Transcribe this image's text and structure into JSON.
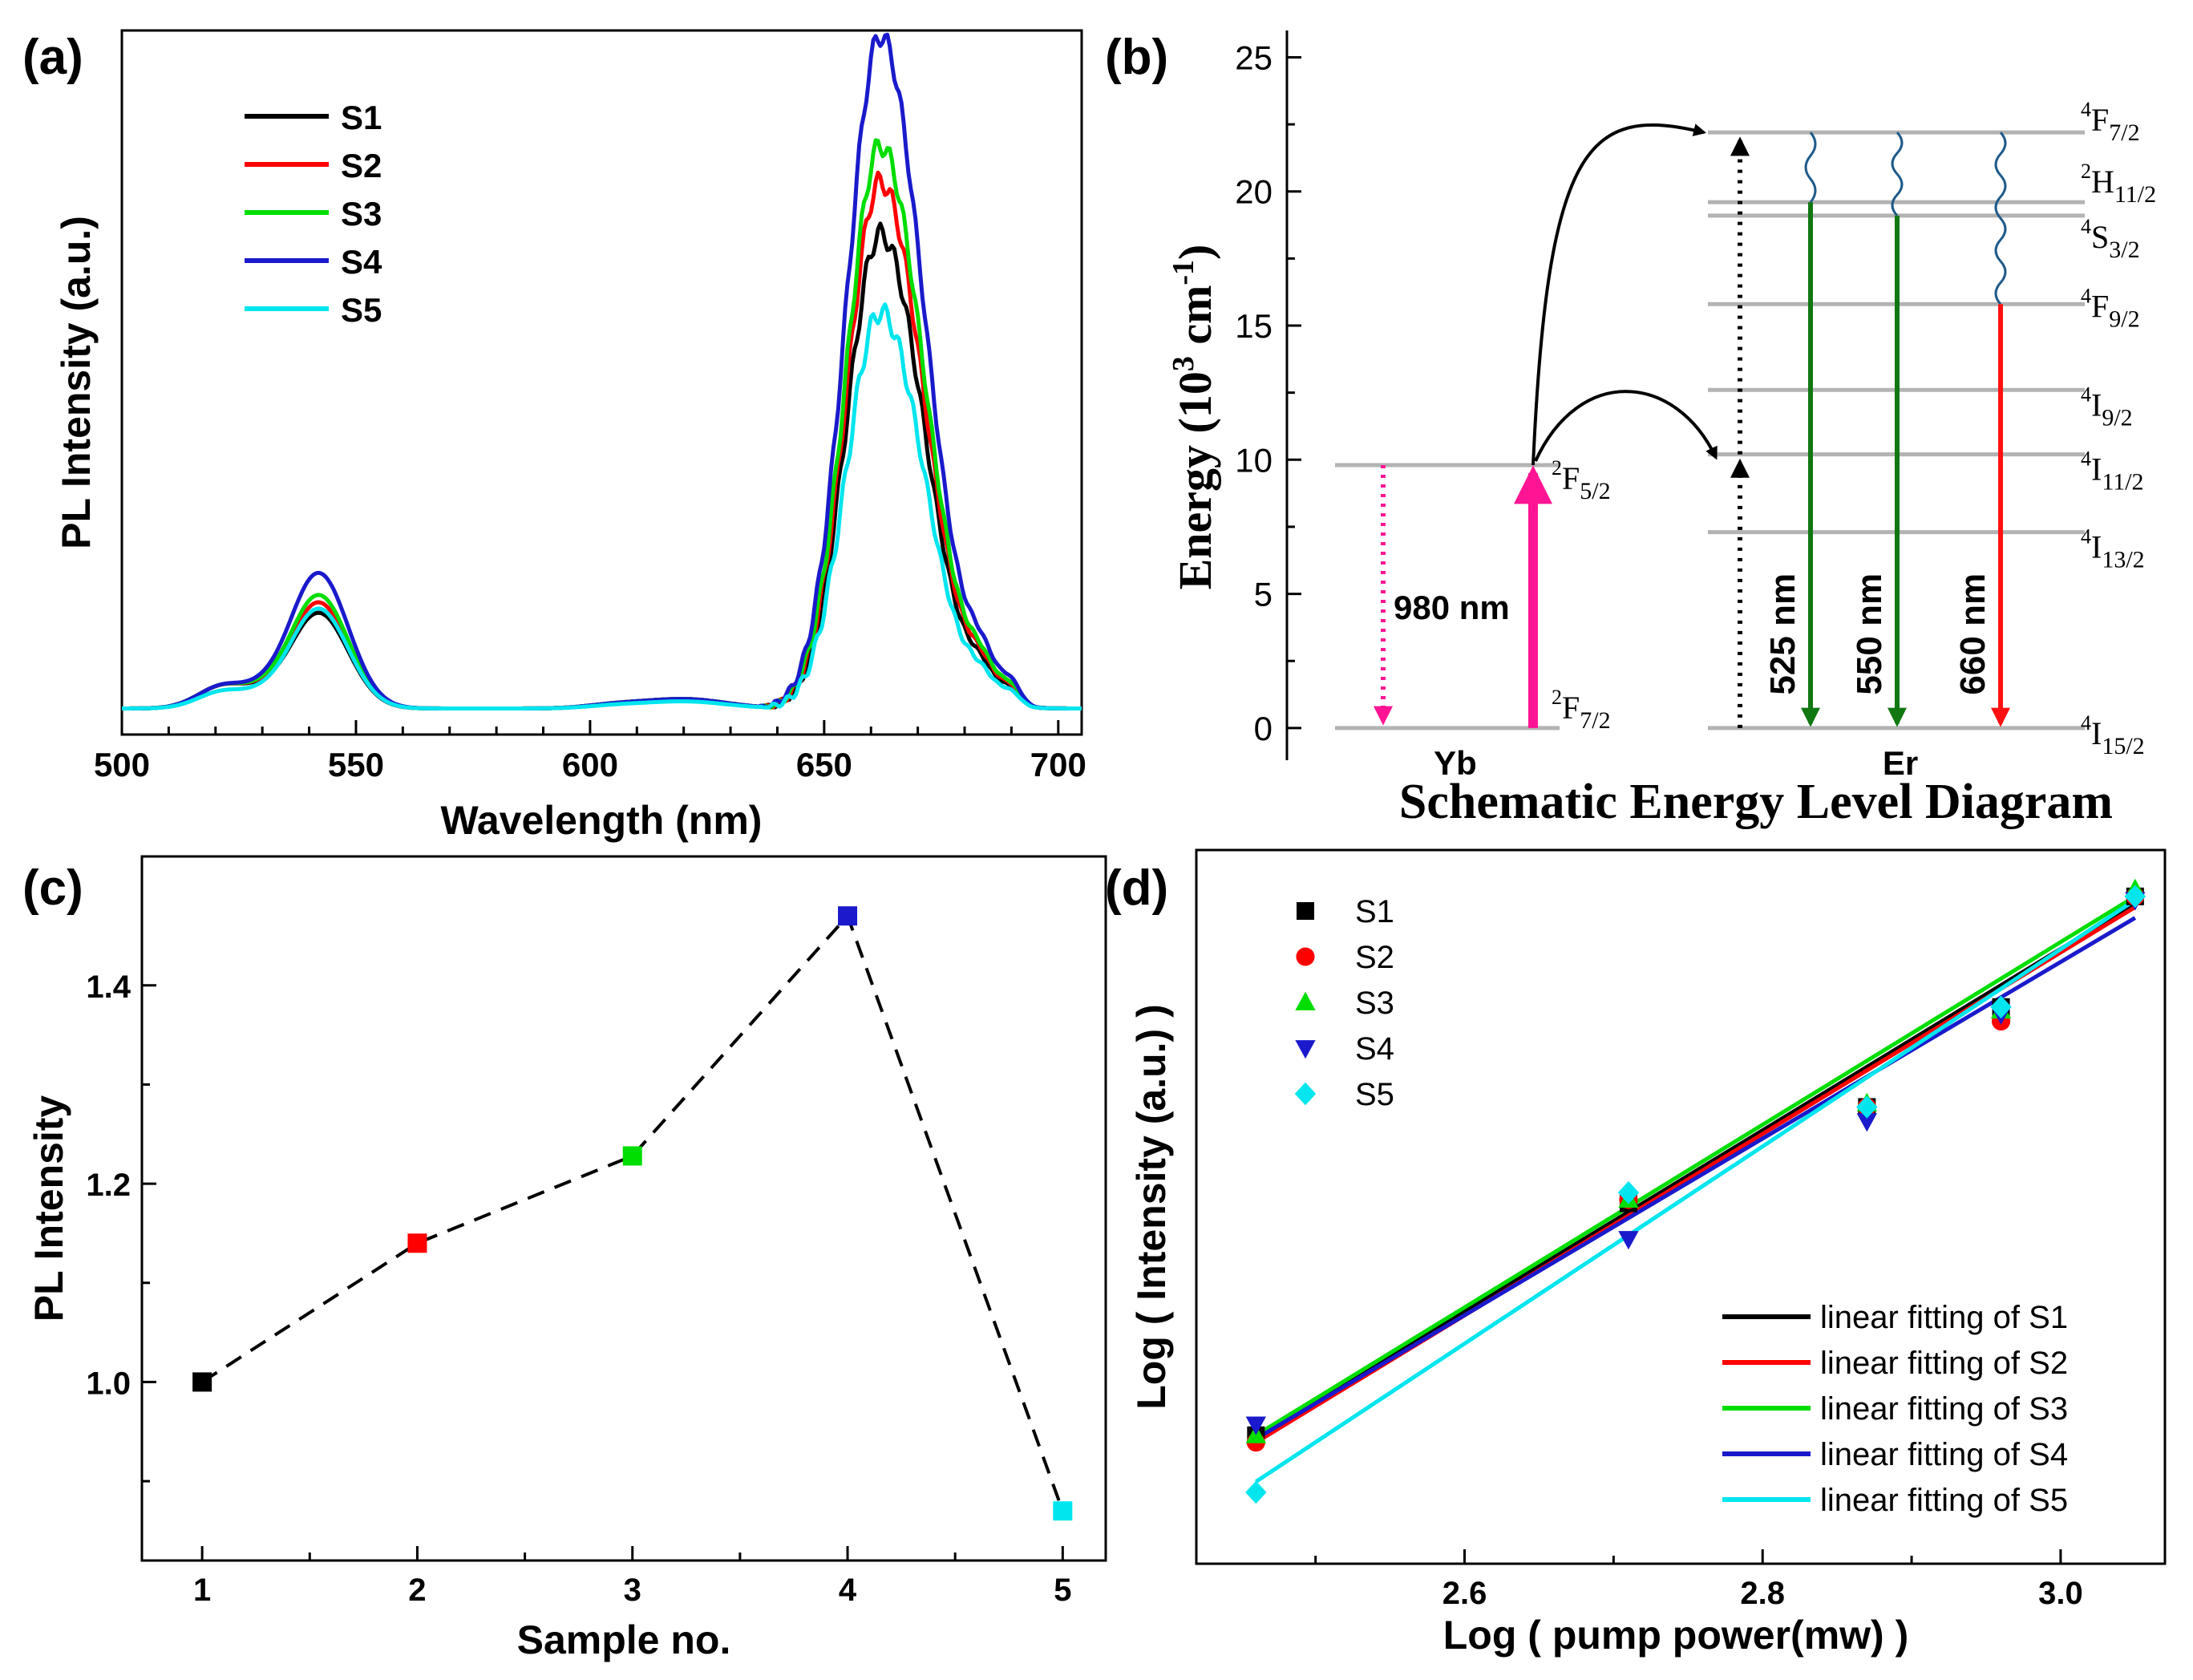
{
  "chart_data": [
    {
      "panel": "(a)",
      "type": "line",
      "xlabel": "Wavelength (nm)",
      "ylabel": "PL Intensity (a.u.)",
      "xlim": [
        500,
        705
      ],
      "ylim": [
        -0.05,
        1.3
      ],
      "xticks": [
        500,
        550,
        600,
        650,
        700
      ],
      "legend": [
        "S1",
        "S2",
        "S3",
        "S4",
        "S5"
      ],
      "colors": [
        "#000000",
        "#ff0000",
        "#00dd00",
        "#1a1acc",
        "#00e5ee"
      ],
      "peak_intensities": [
        0.91,
        1.01,
        1.08,
        1.29,
        0.76
      ]
    },
    {
      "panel": "(b)",
      "type": "diagram",
      "title": "Schematic Energy Level Diagram",
      "ylabel_main": "Energy (10",
      "ylabel_exp1": "3",
      "ylabel_unit": " cm",
      "ylabel_exp2": "-1",
      "ylabel_close": ")",
      "yticks": [
        0,
        5,
        10,
        15,
        20,
        25
      ],
      "ylim": [
        -1.2,
        26
      ],
      "ions": [
        "Yb",
        "Er"
      ],
      "yb_levels": [
        {
          "energy": 0,
          "sup": "2",
          "base": "F",
          "sub": "7/2"
        },
        {
          "energy": 9.8,
          "sup": "2",
          "base": "F",
          "sub": "5/2"
        }
      ],
      "er_levels": [
        {
          "energy": 0,
          "sup": "4",
          "base": "I",
          "sub": "15/2"
        },
        {
          "energy": 7.3,
          "sup": "4",
          "base": "I",
          "sub": "13/2"
        },
        {
          "energy": 10.2,
          "sup": "4",
          "base": "I",
          "sub": "11/2"
        },
        {
          "energy": 12.6,
          "sup": "4",
          "base": "I",
          "sub": "9/2"
        },
        {
          "energy": 15.8,
          "sup": "4",
          "base": "F",
          "sub": "9/2"
        },
        {
          "energy": 19.1,
          "sup": "4",
          "base": "S",
          "sub": "3/2"
        },
        {
          "energy": 19.6,
          "sup": "2",
          "base": "H",
          "sub": "11/2"
        },
        {
          "energy": 22.2,
          "sup": "4",
          "base": "F",
          "sub": "7/2"
        }
      ],
      "excitation_label": "980 nm",
      "emissions": [
        {
          "label": "525 nm",
          "from": 19.6,
          "to": 0,
          "color": "#117711"
        },
        {
          "label": "550 nm",
          "from": 19.1,
          "to": 0,
          "color": "#117711"
        },
        {
          "label": "660 nm",
          "from": 15.8,
          "to": 0,
          "color": "#ff1111"
        }
      ]
    },
    {
      "panel": "(c)",
      "type": "scatter",
      "xlabel": "Sample no.",
      "ylabel": "PL Intensity",
      "xlim": [
        0.72,
        5.2
      ],
      "ylim": [
        0.82,
        1.53
      ],
      "xticks": [
        1,
        2,
        3,
        4,
        5
      ],
      "yticks": [
        "1.0",
        "1.2",
        "1.4"
      ],
      "x": [
        1,
        2,
        3,
        4,
        5
      ],
      "values": [
        1.0,
        1.14,
        1.228,
        1.47,
        0.87
      ],
      "colors": [
        "#000000",
        "#ff0000",
        "#00dd00",
        "#1a1acc",
        "#00e5ee"
      ]
    },
    {
      "panel": "(d)",
      "type": "scatter",
      "xlabel": "Log ( pump power(mw) )",
      "ylabel": "Log ( Intensity (a.u.) )",
      "xlim": [
        2.42,
        3.07
      ],
      "ylim": [
        0.0,
        1.0
      ],
      "xticks": [
        "2.6",
        "2.8",
        "3.0"
      ],
      "x": [
        2.46,
        2.71,
        2.87,
        2.96,
        3.05
      ],
      "series": [
        {
          "name": "S1",
          "marker": "square",
          "color": "#000000",
          "values": [
            0.18,
            0.505,
            0.64,
            0.78,
            0.935
          ]
        },
        {
          "name": "S2",
          "marker": "circle",
          "color": "#ff0000",
          "values": [
            0.17,
            0.51,
            0.64,
            0.76,
            0.935
          ]
        },
        {
          "name": "S3",
          "marker": "triangle-up",
          "color": "#00dd00",
          "values": [
            0.18,
            0.51,
            0.645,
            0.775,
            0.945
          ]
        },
        {
          "name": "S4",
          "marker": "triangle-down",
          "color": "#1a1acc",
          "values": [
            0.195,
            0.455,
            0.62,
            0.77,
            0.93
          ]
        },
        {
          "name": "S5",
          "marker": "diamond",
          "color": "#00e5ee",
          "values": [
            0.1,
            0.52,
            0.64,
            0.78,
            0.935
          ]
        }
      ],
      "fits": [
        {
          "name": "linear fitting of S1",
          "color": "#000000",
          "y0": 0.175,
          "y1": 0.925
        },
        {
          "name": "linear fitting of S2",
          "color": "#ff0000",
          "y0": 0.17,
          "y1": 0.92
        },
        {
          "name": "linear fitting of S3",
          "color": "#00dd00",
          "y0": 0.18,
          "y1": 0.935
        },
        {
          "name": "linear fitting of S4",
          "color": "#1a1acc",
          "y0": 0.175,
          "y1": 0.905
        },
        {
          "name": "linear fitting of S5",
          "color": "#00e5ee",
          "y0": 0.115,
          "y1": 0.93
        }
      ]
    }
  ]
}
